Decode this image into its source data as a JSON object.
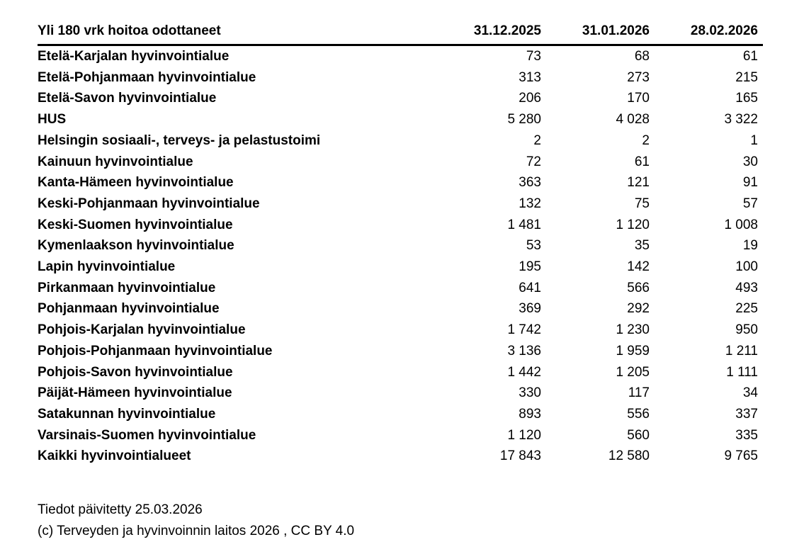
{
  "table": {
    "title": "Yli 180 vrk hoitoa odottaneet",
    "columns": [
      "31.12.2025",
      "31.01.2026",
      "28.02.2026"
    ],
    "rows": [
      {
        "label": "Etelä-Karjalan hyvinvointialue",
        "values": [
          "73",
          "68",
          "61"
        ]
      },
      {
        "label": "Etelä-Pohjanmaan hyvinvointialue",
        "values": [
          "313",
          "273",
          "215"
        ]
      },
      {
        "label": "Etelä-Savon hyvinvointialue",
        "values": [
          "206",
          "170",
          "165"
        ]
      },
      {
        "label": "HUS",
        "values": [
          "5 280",
          "4 028",
          "3 322"
        ]
      },
      {
        "label": "Helsingin sosiaali-, terveys- ja pelastustoimi",
        "values": [
          "2",
          "2",
          "1"
        ]
      },
      {
        "label": "Kainuun hyvinvointialue",
        "values": [
          "72",
          "61",
          "30"
        ]
      },
      {
        "label": "Kanta-Hämeen hyvinvointialue",
        "values": [
          "363",
          "121",
          "91"
        ]
      },
      {
        "label": "Keski-Pohjanmaan hyvinvointialue",
        "values": [
          "132",
          "75",
          "57"
        ]
      },
      {
        "label": "Keski-Suomen hyvinvointialue",
        "values": [
          "1 481",
          "1 120",
          "1 008"
        ]
      },
      {
        "label": "Kymenlaakson hyvinvointialue",
        "values": [
          "53",
          "35",
          "19"
        ]
      },
      {
        "label": "Lapin hyvinvointialue",
        "values": [
          "195",
          "142",
          "100"
        ]
      },
      {
        "label": "Pirkanmaan hyvinvointialue",
        "values": [
          "641",
          "566",
          "493"
        ]
      },
      {
        "label": "Pohjanmaan hyvinvointialue",
        "values": [
          "369",
          "292",
          "225"
        ]
      },
      {
        "label": "Pohjois-Karjalan hyvinvointialue",
        "values": [
          "1 742",
          "1 230",
          "950"
        ]
      },
      {
        "label": "Pohjois-Pohjanmaan hyvinvointialue",
        "values": [
          "3 136",
          "1 959",
          "1 211"
        ]
      },
      {
        "label": "Pohjois-Savon hyvinvointialue",
        "values": [
          "1 442",
          "1 205",
          "1 111"
        ]
      },
      {
        "label": "Päijät-Hämeen hyvinvointialue",
        "values": [
          "330",
          "117",
          "34"
        ]
      },
      {
        "label": "Satakunnan hyvinvointialue",
        "values": [
          "893",
          "556",
          "337"
        ]
      },
      {
        "label": "Varsinais-Suomen hyvinvointialue",
        "values": [
          "1 120",
          "560",
          "335"
        ]
      },
      {
        "label": "Kaikki hyvinvointialueet",
        "values": [
          "17 843",
          "12 580",
          "9 765"
        ]
      }
    ]
  },
  "footer": {
    "updated": "Tiedot päivitetty 25.03.2026",
    "copyright": "(c) Terveyden ja hyvinvoinnin laitos 2026 , CC BY 4.0"
  },
  "colors": {
    "text": "#000000",
    "background": "#ffffff",
    "rule": "#000000"
  }
}
